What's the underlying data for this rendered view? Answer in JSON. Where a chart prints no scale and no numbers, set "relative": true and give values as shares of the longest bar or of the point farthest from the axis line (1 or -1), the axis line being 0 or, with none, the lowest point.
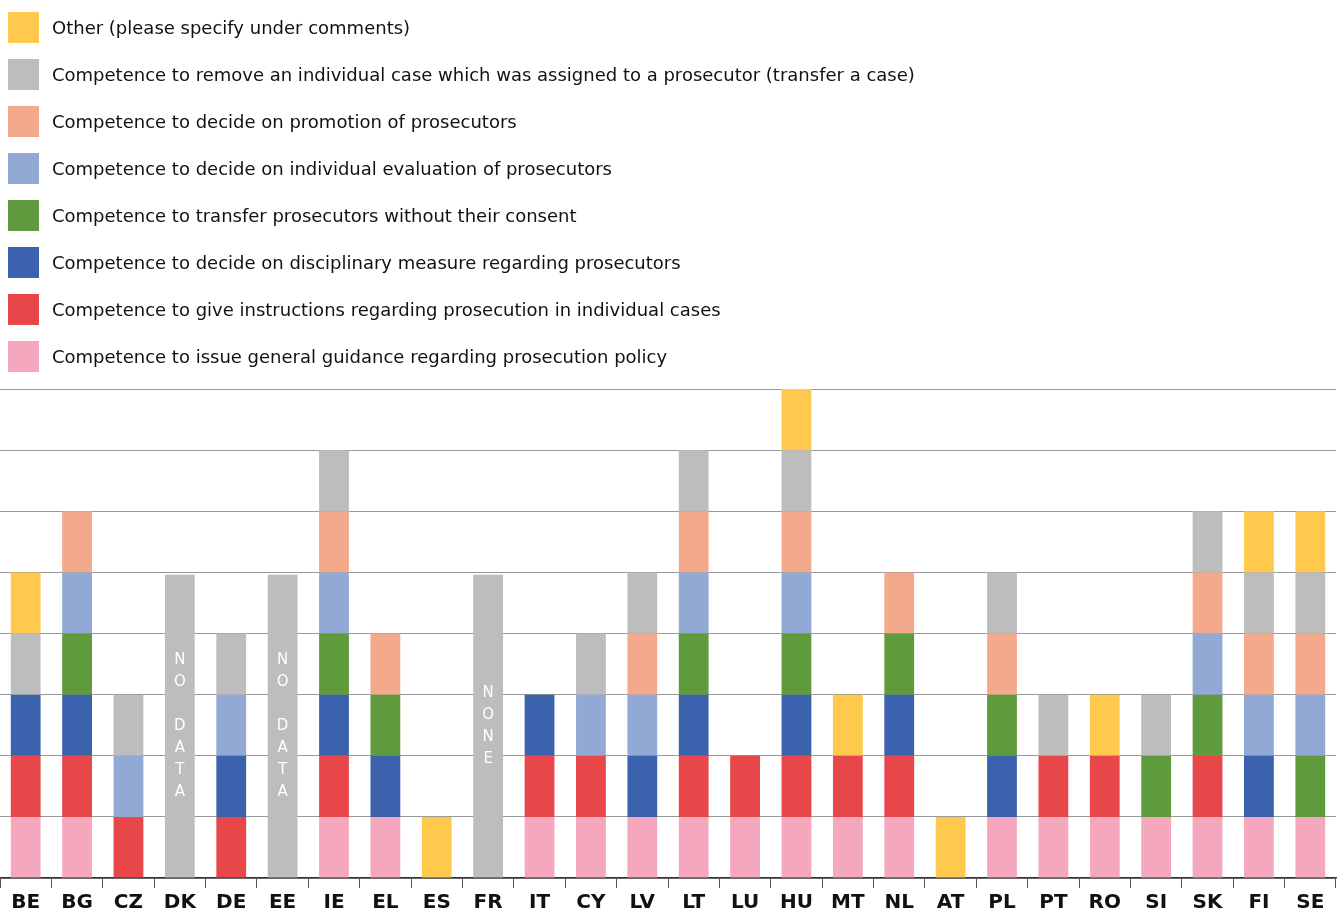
{
  "chart_data": {
    "type": "bar",
    "stacked": true,
    "relative": true,
    "grid": "y",
    "legend": "top left",
    "categories": [
      "BE",
      "BG",
      "CZ",
      "DK",
      "DE",
      "EE",
      "IE",
      "EL",
      "ES",
      "FR",
      "IT",
      "CY",
      "LV",
      "LT",
      "LU",
      "HU",
      "MT",
      "NL",
      "AT",
      "PL",
      "PT",
      "RO",
      "SI",
      "SK",
      "FI",
      "SE"
    ],
    "series": [
      {
        "name": "Competence to issue general guidance regarding prosecution policy",
        "color": "#f4a7bd",
        "values": [
          0.125,
          0.125,
          null,
          null,
          null,
          null,
          0.125,
          0.125,
          null,
          null,
          0.125,
          0.125,
          0.125,
          0.125,
          0.125,
          0.125,
          0.125,
          0.125,
          null,
          0.125,
          0.125,
          0.125,
          0.125,
          0.125,
          0.125,
          0.125
        ]
      },
      {
        "name": "Competence to give instructions regarding prosecution in individual cases",
        "color": "#e8474a",
        "values": [
          0.125,
          0.125,
          0.125,
          null,
          0.125,
          null,
          0.125,
          null,
          null,
          null,
          0.125,
          0.125,
          null,
          0.125,
          0.125,
          0.125,
          0.125,
          0.125,
          null,
          null,
          0.125,
          0.125,
          null,
          0.125,
          null,
          null
        ]
      },
      {
        "name": "Competence to decide on disciplinary measure regarding prosecutors",
        "color": "#3b62ad",
        "values": [
          0.125,
          0.125,
          null,
          null,
          0.125,
          null,
          0.125,
          0.125,
          null,
          null,
          0.125,
          null,
          0.125,
          0.125,
          null,
          0.125,
          null,
          0.125,
          null,
          0.125,
          null,
          null,
          null,
          null,
          0.125,
          null
        ]
      },
      {
        "name": "Competence to transfer prosecutors without their consent",
        "color": "#5f9a3c",
        "values": [
          null,
          0.125,
          null,
          null,
          null,
          null,
          0.125,
          0.125,
          null,
          null,
          null,
          null,
          null,
          0.125,
          null,
          0.125,
          null,
          0.125,
          null,
          0.125,
          null,
          null,
          0.125,
          0.125,
          null,
          0.125
        ]
      },
      {
        "name": "Competence to decide on individual evaluation of prosecutors",
        "color": "#92a9d6",
        "values": [
          null,
          0.125,
          0.125,
          null,
          0.125,
          null,
          0.125,
          null,
          null,
          null,
          null,
          0.125,
          0.125,
          0.125,
          null,
          0.125,
          null,
          null,
          null,
          null,
          null,
          null,
          null,
          0.125,
          0.125,
          0.125
        ]
      },
      {
        "name": "Competence to decide on promotion of prosecutors",
        "color": "#f2a98c",
        "values": [
          null,
          0.125,
          null,
          null,
          null,
          null,
          0.125,
          0.125,
          null,
          null,
          null,
          null,
          0.125,
          0.125,
          null,
          0.125,
          null,
          0.125,
          null,
          0.125,
          null,
          null,
          null,
          0.125,
          0.125,
          0.125
        ]
      },
      {
        "name": "Competence to remove an individual case which was assigned to a prosecutor (transfer a case)",
        "color": "#bdbdbd",
        "values": [
          0.125,
          null,
          0.125,
          null,
          0.125,
          null,
          0.125,
          null,
          null,
          null,
          null,
          0.125,
          0.125,
          0.125,
          null,
          0.125,
          null,
          null,
          null,
          0.125,
          0.125,
          null,
          0.125,
          0.125,
          0.125,
          0.125
        ]
      },
      {
        "name": "Other (please specify under comments)",
        "color": "#fec94c",
        "values": [
          0.125,
          null,
          null,
          null,
          null,
          null,
          null,
          null,
          0.125,
          null,
          null,
          null,
          null,
          null,
          null,
          0.125,
          0.125,
          null,
          0.125,
          null,
          null,
          0.125,
          null,
          null,
          0.125,
          0.125
        ]
      },
      {
        "color": "#bdbdbd",
        "values": [
          null,
          null,
          null,
          0.62,
          null,
          0.62,
          null,
          null,
          null,
          0.62,
          null,
          null,
          null,
          null,
          null,
          null,
          null,
          null,
          null,
          null,
          null,
          null,
          null,
          null,
          null,
          null
        ]
      }
    ],
    "annotations": [
      "NO DATA",
      "NO DATA",
      "NONE"
    ]
  }
}
